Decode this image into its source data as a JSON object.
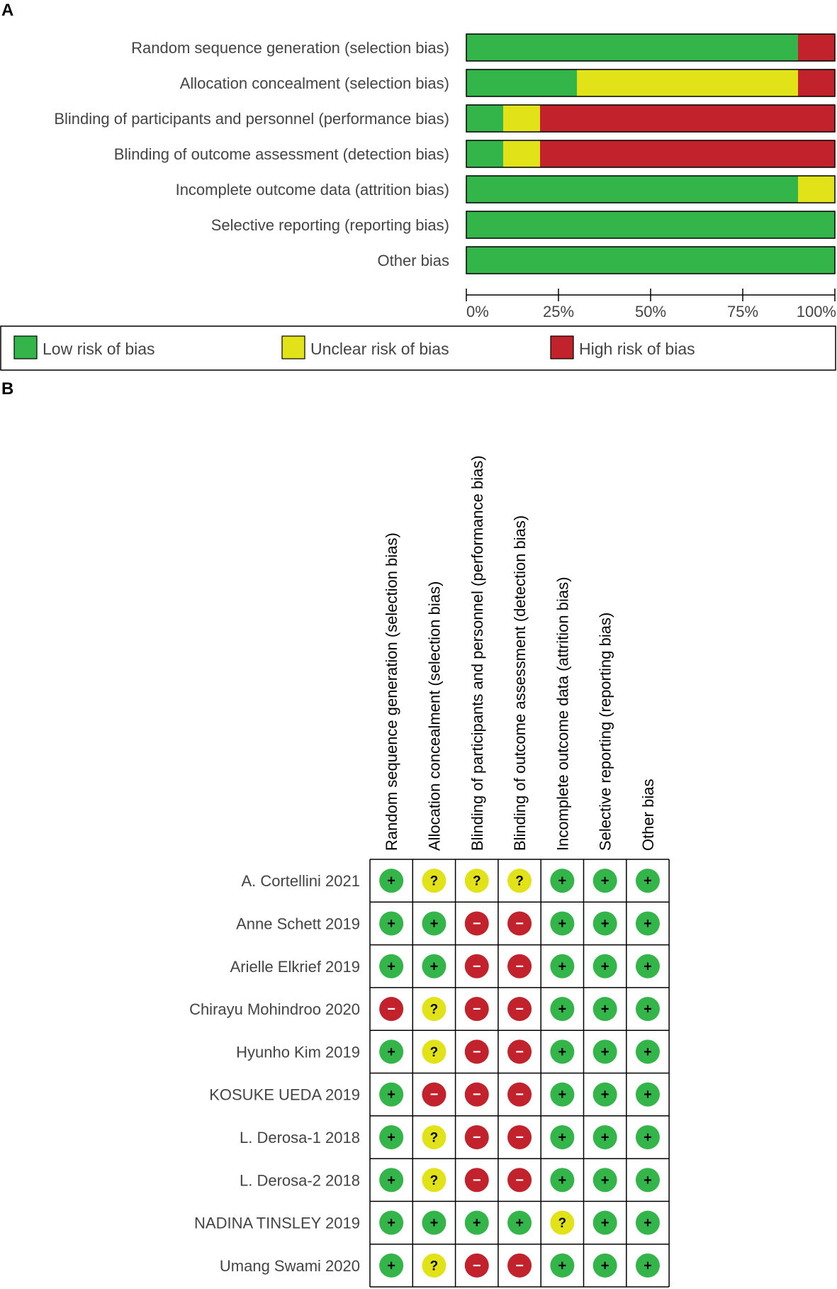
{
  "panel_a": {
    "label": "A",
    "chart_data": {
      "type": "bar",
      "orientation": "horizontal",
      "stacked": true,
      "categories": [
        "Random sequence generation (selection bias)",
        "Allocation concealment (selection bias)",
        "Blinding of participants and personnel (performance bias)",
        "Blinding of outcome assessment (detection bias)",
        "Incomplete outcome data (attrition bias)",
        "Selective reporting (reporting bias)",
        "Other bias"
      ],
      "series": [
        {
          "name": "Low risk of bias",
          "color": "#33b54a",
          "values": [
            90,
            30,
            10,
            10,
            90,
            100,
            100
          ]
        },
        {
          "name": "Unclear risk of bias",
          "color": "#e2e219",
          "values": [
            0,
            60,
            10,
            10,
            10,
            0,
            0
          ]
        },
        {
          "name": "High risk of bias",
          "color": "#c1222b",
          "values": [
            10,
            10,
            80,
            80,
            0,
            0,
            0
          ]
        }
      ],
      "xlim": [
        0,
        100
      ],
      "xticks": [
        "0%",
        "25%",
        "50%",
        "75%",
        "100%"
      ],
      "legend_position": "bottom"
    }
  },
  "panel_b": {
    "label": "B",
    "chart_data": {
      "type": "table",
      "columns": [
        "Random sequence generation (selection bias)",
        "Allocation concealment (selection bias)",
        "Blinding of participants and personnel (performance bias)",
        "Blinding of outcome assessment (detection bias)",
        "Incomplete outcome data (attrition bias)",
        "Selective reporting (reporting bias)",
        "Other bias"
      ],
      "rows": [
        {
          "study": "A. Cortellini 2021",
          "ratings": [
            "+",
            "?",
            "?",
            "?",
            "+",
            "+",
            "+"
          ]
        },
        {
          "study": "Anne Schett 2019",
          "ratings": [
            "+",
            "+",
            "-",
            "-",
            "+",
            "+",
            "+"
          ]
        },
        {
          "study": "Arielle Elkrief 2019",
          "ratings": [
            "+",
            "+",
            "-",
            "-",
            "+",
            "+",
            "+"
          ]
        },
        {
          "study": "Chirayu Mohindroo 2020",
          "ratings": [
            "-",
            "?",
            "-",
            "-",
            "+",
            "+",
            "+"
          ]
        },
        {
          "study": "Hyunho Kim 2019",
          "ratings": [
            "+",
            "?",
            "-",
            "-",
            "+",
            "+",
            "+"
          ]
        },
        {
          "study": "KOSUKE UEDA 2019",
          "ratings": [
            "+",
            "-",
            "-",
            "-",
            "+",
            "+",
            "+"
          ]
        },
        {
          "study": "L. Derosa-1 2018",
          "ratings": [
            "+",
            "?",
            "-",
            "-",
            "+",
            "+",
            "+"
          ]
        },
        {
          "study": "L. Derosa-2 2018",
          "ratings": [
            "+",
            "?",
            "-",
            "-",
            "+",
            "+",
            "+"
          ]
        },
        {
          "study": "NADINA TINSLEY 2019",
          "ratings": [
            "+",
            "+",
            "+",
            "+",
            "?",
            "+",
            "+"
          ]
        },
        {
          "study": "Umang Swami 2020",
          "ratings": [
            "+",
            "?",
            "-",
            "-",
            "+",
            "+",
            "+"
          ]
        }
      ],
      "rating_colors": {
        "+": "#33b54a",
        "?": "#e2e219",
        "-": "#c1222b"
      },
      "rating_symbols": {
        "+": "+",
        "?": "?",
        "-": "−"
      }
    }
  }
}
